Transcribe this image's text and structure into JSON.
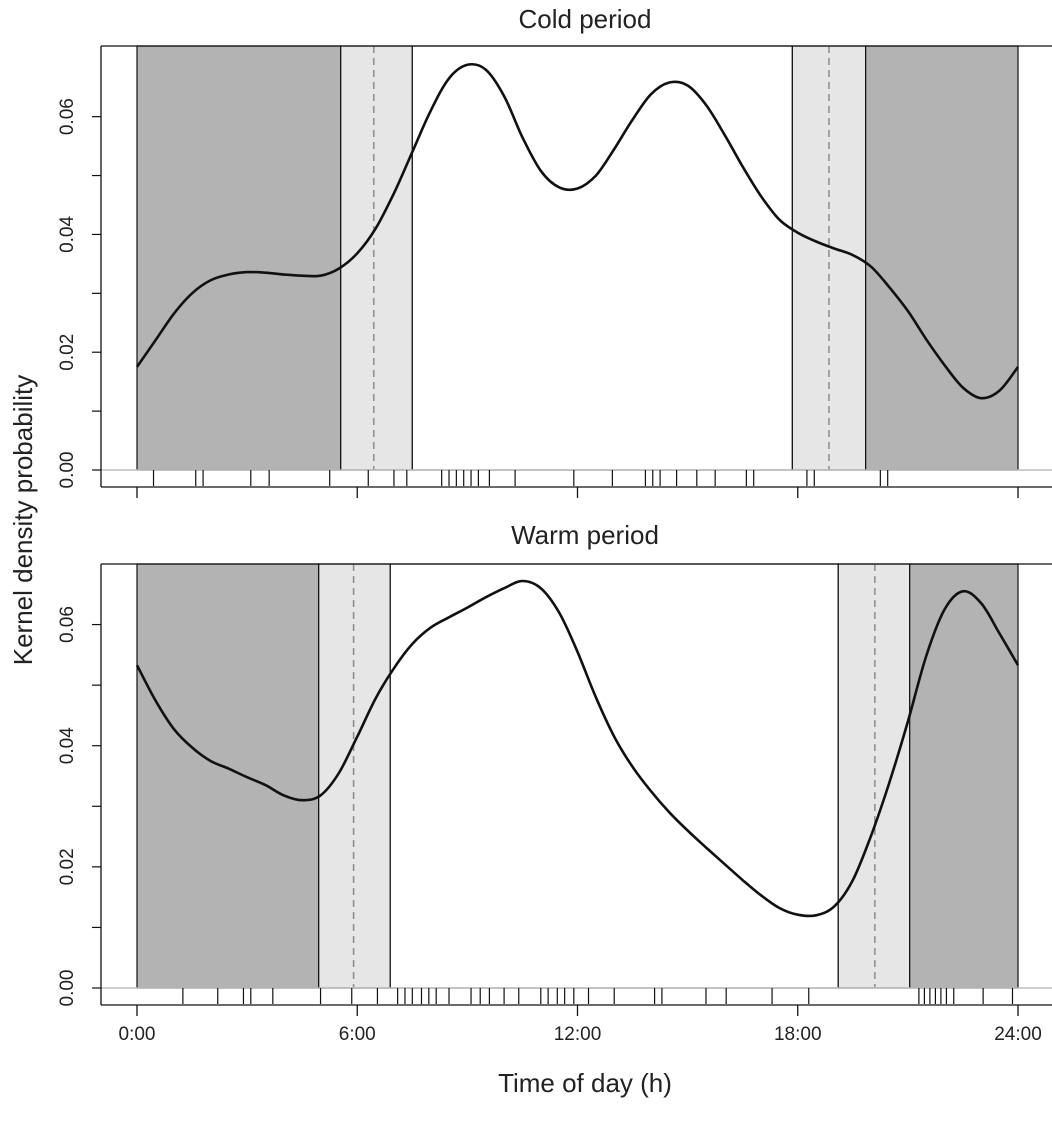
{
  "chart_data": {
    "type": "line",
    "ylabel": "Kernel density probability",
    "xlabel": "Time of day (h)",
    "x_range_hours": [
      0,
      24
    ],
    "x_ticks": [
      {
        "hour": 0,
        "label": "0:00"
      },
      {
        "hour": 6,
        "label": "6:00"
      },
      {
        "hour": 12,
        "label": "12:00"
      },
      {
        "hour": 18,
        "label": "18:00"
      },
      {
        "hour": 24,
        "label": "24:00"
      }
    ],
    "y_ticks": [
      "0.00",
      "0.02",
      "0.04",
      "0.06"
    ],
    "grid": false,
    "colors": {
      "night": "#b3b3b3",
      "twilight": "#e6e6e6",
      "day": "#ffffff",
      "curve": "#111111",
      "baseline": "#bdbdbd",
      "sun_line": "#8c8c8c"
    },
    "panels": [
      {
        "title": "Cold period",
        "ylim": [
          0,
          0.072
        ],
        "night_end": 5.55,
        "sunrise": 6.45,
        "day_start": 7.5,
        "day_end": 17.85,
        "sunset": 18.85,
        "night_start": 19.85,
        "density": {
          "x": [
            0,
            0.5,
            1,
            1.5,
            2,
            2.5,
            3,
            3.5,
            4,
            4.5,
            5,
            5.5,
            6,
            6.5,
            7,
            7.5,
            8,
            8.5,
            9,
            9.5,
            10,
            10.5,
            11,
            11.5,
            12,
            12.5,
            13,
            13.5,
            14,
            14.5,
            15,
            15.5,
            16,
            16.5,
            17,
            17.5,
            18,
            18.5,
            19,
            19.5,
            20,
            20.5,
            21,
            21.5,
            22,
            22.5,
            23,
            23.5,
            24
          ],
          "y": [
            0.0175,
            0.022,
            0.0265,
            0.03,
            0.0322,
            0.0332,
            0.0336,
            0.0335,
            0.0332,
            0.033,
            0.033,
            0.0342,
            0.0368,
            0.041,
            0.047,
            0.054,
            0.061,
            0.0665,
            0.0688,
            0.068,
            0.0635,
            0.0565,
            0.0508,
            0.048,
            0.0478,
            0.05,
            0.0545,
            0.0595,
            0.0638,
            0.0658,
            0.0653,
            0.062,
            0.057,
            0.0515,
            0.0465,
            0.0425,
            0.0403,
            0.0388,
            0.0376,
            0.0365,
            0.0345,
            0.031,
            0.027,
            0.0222,
            0.0178,
            0.014,
            0.0122,
            0.0135,
            0.0175
          ]
        },
        "rug": [
          0.45,
          1.6,
          1.8,
          3.1,
          3.6,
          5.25,
          6.3,
          7.0,
          7.35,
          8.3,
          8.5,
          8.7,
          8.9,
          9.1,
          9.3,
          9.6,
          10.3,
          11.9,
          12.95,
          13.85,
          14.05,
          14.25,
          14.7,
          15.25,
          15.75,
          16.6,
          16.8,
          18.25,
          18.45,
          20.25,
          20.45
        ]
      },
      {
        "title": "Warm period",
        "ylim": [
          0,
          0.07
        ],
        "night_end": 4.95,
        "sunrise": 5.9,
        "day_start": 6.9,
        "day_end": 19.1,
        "sunset": 20.1,
        "night_start": 21.05,
        "density": {
          "x": [
            0,
            0.5,
            1,
            1.5,
            2,
            2.5,
            3,
            3.5,
            4,
            4.5,
            5,
            5.5,
            6,
            6.5,
            7,
            7.5,
            8,
            8.5,
            9,
            9.5,
            10,
            10.5,
            11,
            11.5,
            12,
            12.5,
            13,
            13.5,
            14,
            14.5,
            15,
            15.5,
            16,
            16.5,
            17,
            17.5,
            18,
            18.5,
            19,
            19.5,
            20,
            20.5,
            21,
            21.5,
            22,
            22.5,
            23,
            23.5,
            24
          ],
          "y": [
            0.0533,
            0.0475,
            0.0428,
            0.0397,
            0.0375,
            0.0362,
            0.0348,
            0.0335,
            0.0318,
            0.031,
            0.0318,
            0.0355,
            0.0415,
            0.0478,
            0.0528,
            0.0568,
            0.0595,
            0.0612,
            0.0628,
            0.0645,
            0.066,
            0.0672,
            0.066,
            0.062,
            0.0555,
            0.048,
            0.0415,
            0.0365,
            0.0325,
            0.029,
            0.026,
            0.0232,
            0.0205,
            0.0178,
            0.0153,
            0.0132,
            0.0121,
            0.012,
            0.0135,
            0.0178,
            0.0252,
            0.034,
            0.044,
            0.0548,
            0.0625,
            0.0655,
            0.0635,
            0.0585,
            0.0533
          ]
        },
        "rug": [
          1.25,
          2.2,
          2.9,
          3.1,
          3.7,
          5.0,
          5.85,
          6.55,
          7.1,
          7.3,
          7.5,
          7.75,
          7.95,
          8.15,
          8.5,
          9.1,
          9.35,
          9.6,
          10.0,
          10.4,
          11.0,
          11.2,
          11.45,
          11.65,
          11.9,
          12.3,
          13.0,
          14.1,
          14.3,
          15.5,
          16.05,
          17.3,
          18.3,
          21.3,
          21.45,
          21.6,
          21.75,
          21.9,
          22.05,
          22.25,
          23.05,
          23.85
        ]
      }
    ]
  }
}
